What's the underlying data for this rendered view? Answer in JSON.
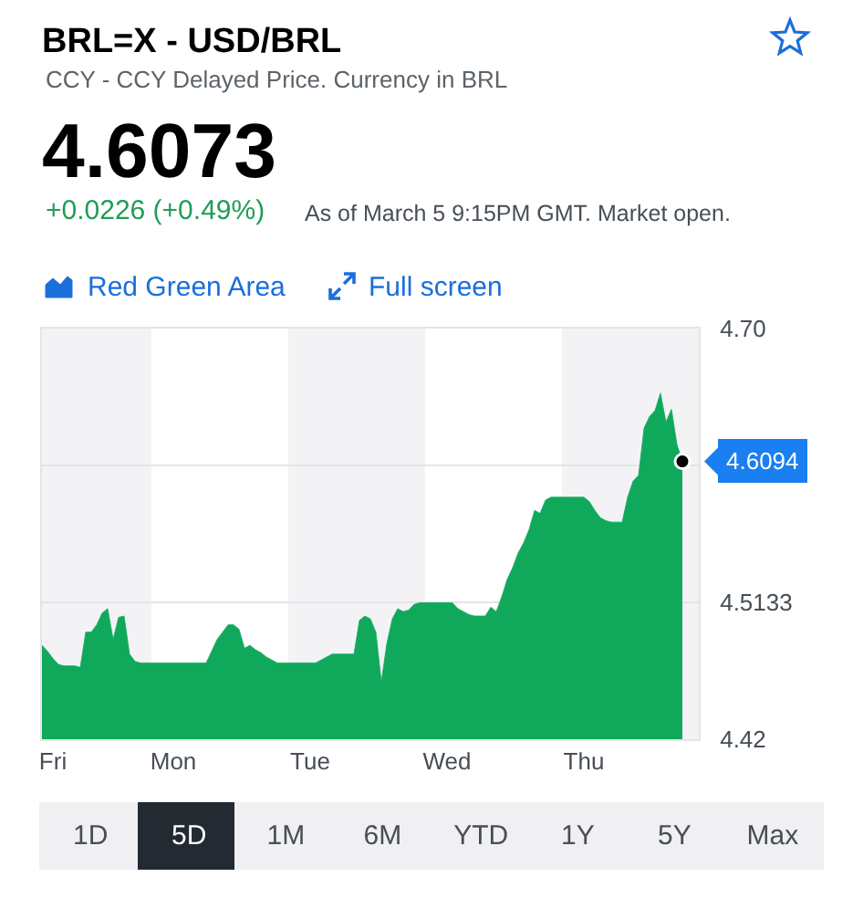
{
  "chart_data": {
    "type": "area",
    "title": "BRL=X - USD/BRL",
    "subtitle": "CCY - CCY Delayed Price. Currency in BRL",
    "categories": [
      null,
      null,
      "Fri",
      null,
      null,
      null,
      null,
      null,
      null,
      null,
      null,
      null,
      null,
      null,
      null,
      null,
      null,
      null,
      null,
      null,
      null,
      null,
      null,
      null,
      "Mon",
      null,
      null,
      null,
      null,
      null,
      null,
      null,
      null,
      null,
      null,
      null,
      null,
      null,
      null,
      null,
      null,
      null,
      null,
      null,
      null,
      null,
      null,
      null,
      null,
      "Tue",
      null,
      null,
      null,
      null,
      null,
      null,
      null,
      null,
      null,
      null,
      null,
      null,
      null,
      null,
      null,
      null,
      null,
      null,
      null,
      null,
      null,
      null,
      null,
      null,
      "Wed",
      null,
      null,
      null,
      null,
      null,
      null,
      null,
      null,
      null,
      null,
      null,
      null,
      null,
      null,
      null,
      null,
      null,
      null,
      null,
      null,
      null,
      null,
      null,
      null,
      "Thu",
      null,
      null,
      null,
      null,
      null,
      null,
      null,
      null,
      null,
      null,
      null,
      null,
      null,
      null,
      null,
      null,
      null,
      null,
      null,
      null,
      null
    ],
    "values": [
      4.484,
      4.48,
      4.475,
      4.471,
      4.47,
      4.47,
      4.47,
      4.469,
      4.493,
      4.493,
      4.498,
      4.506,
      4.509,
      4.488,
      4.503,
      4.504,
      4.478,
      4.473,
      4.472,
      4.472,
      4.472,
      4.472,
      4.472,
      4.472,
      4.472,
      4.472,
      4.472,
      4.472,
      4.472,
      4.472,
      4.472,
      4.48,
      4.488,
      4.493,
      4.498,
      4.498,
      4.495,
      4.482,
      4.484,
      4.481,
      4.479,
      4.476,
      4.474,
      4.472,
      4.472,
      4.472,
      4.472,
      4.472,
      4.472,
      4.472,
      4.472,
      4.474,
      4.476,
      4.478,
      4.478,
      4.478,
      4.478,
      4.478,
      4.501,
      4.504,
      4.502,
      4.493,
      4.459,
      4.485,
      4.502,
      4.509,
      4.507,
      4.508,
      4.512,
      4.513,
      4.513,
      4.513,
      4.513,
      4.513,
      4.513,
      4.513,
      4.509,
      4.507,
      4.505,
      4.504,
      4.504,
      4.504,
      4.51,
      4.507,
      4.517,
      4.529,
      4.537,
      4.547,
      4.554,
      4.563,
      4.576,
      4.574,
      4.583,
      4.585,
      4.585,
      4.585,
      4.585,
      4.585,
      4.585,
      4.585,
      4.582,
      4.576,
      4.571,
      4.569,
      4.568,
      4.568,
      4.568,
      4.585,
      4.596,
      4.6,
      4.632,
      4.64,
      4.644,
      4.656,
      4.636,
      4.645,
      4.621,
      4.6094,
      null,
      null,
      null
    ],
    "color": "#10a95b",
    "ylim": [
      4.42,
      4.7
    ],
    "yticks": [
      4.42,
      4.5133,
      {
        "value": 4.6067,
        "label": null
      },
      {
        "value": 4.7,
        "label": "4.70"
      }
    ],
    "grid": "y",
    "annotations": [
      "4.6073",
      "+0.0226 (+0.49%)",
      "As of March 5 9:15PM GMT. Market open.",
      "Red Green Area",
      "Full screen",
      "1D",
      "5D",
      "1M",
      "6M",
      "YTD",
      "1Y",
      "5Y",
      "Max",
      "4.6094"
    ]
  }
}
